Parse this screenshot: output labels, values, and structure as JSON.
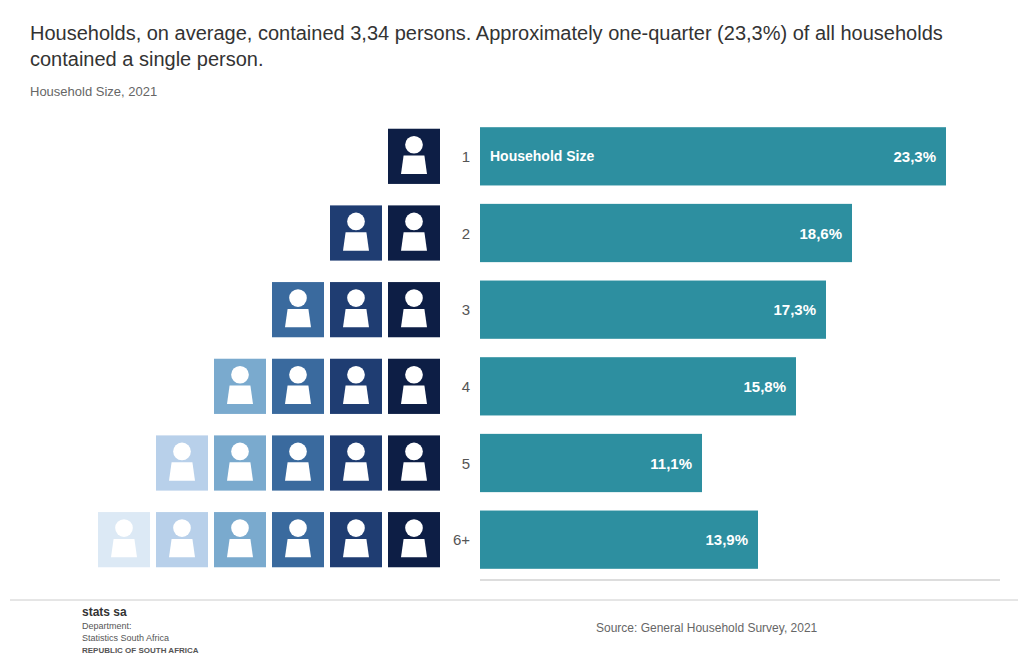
{
  "chart_data": {
    "type": "bar",
    "orientation": "horizontal",
    "title": "Households, on average, contained 3,34 persons. Approximately one-quarter (23,3%) of all households contained a single person.",
    "subtitle": "Household Size, 2021",
    "categories": [
      "1",
      "2",
      "3",
      "4",
      "5",
      "6+"
    ],
    "values": [
      23.3,
      18.6,
      17.3,
      15.8,
      11.1,
      13.9
    ],
    "value_labels": [
      "23,3%",
      "18,6%",
      "17,3%",
      "15,8%",
      "11,1%",
      "13,9%"
    ],
    "color": "#2d8fa0",
    "xlim": [
      0,
      26
    ],
    "tick_labels": "y",
    "grid": false,
    "data_labels": true,
    "annotations": [
      "Household Size",
      "Source: General Household Survey, 2021",
      "stats sa",
      "Department:",
      "Statistics South Africa",
      "REPUBLIC OF SOUTH AFRICA"
    ]
  }
}
